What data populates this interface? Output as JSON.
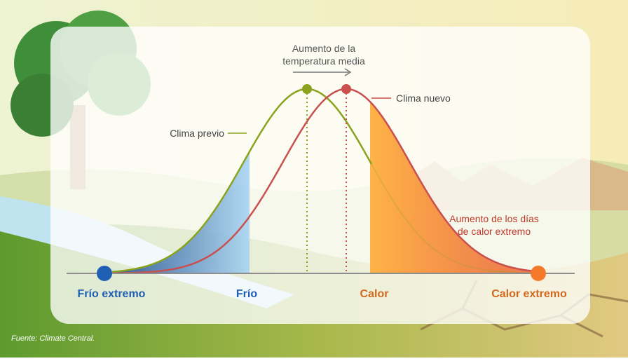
{
  "shift_label": [
    "Aumento de la",
    "temperatura media"
  ],
  "new_climate": "Clima nuevo",
  "old_climate": "Clima previo",
  "extreme_heat_label": [
    "Aumento de los días",
    "de calor extremo"
  ],
  "axis_labels": [
    "Frío extremo",
    "Frío",
    "Calor",
    "Calor extremo"
  ],
  "source": "Fuente: Climate Central."
}
